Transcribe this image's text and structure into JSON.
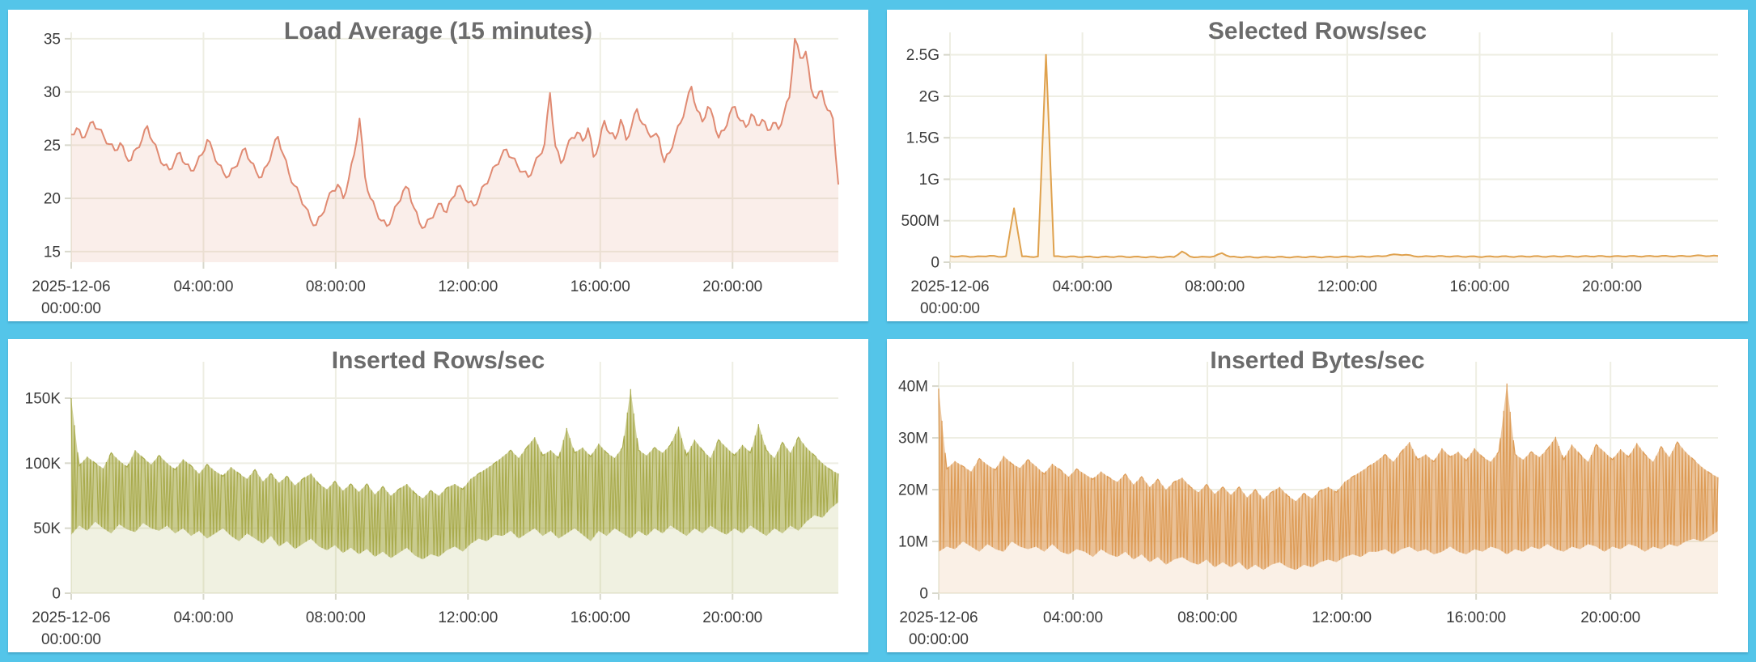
{
  "page": {
    "background_color": "#54c5e9",
    "panel_color": "#ffffff",
    "grid_color": "#eeeee3",
    "tick_stub_color": "#d8d8cc",
    "tick_text_color": "#3b3b3b",
    "title_color": "#6b6b6b"
  },
  "x_axis": {
    "start_label_line1": "2025-12-06",
    "start_label_line2": "00:00:00",
    "ticks": [
      {
        "hour": 0,
        "line1": "2025-12-06",
        "line2": "00:00:00"
      },
      {
        "hour": 4,
        "line1": "04:00:00"
      },
      {
        "hour": 8,
        "line1": "08:00:00"
      },
      {
        "hour": 12,
        "line1": "12:00:00"
      },
      {
        "hour": 16,
        "line1": "16:00:00"
      },
      {
        "hour": 20,
        "line1": "20:00:00"
      }
    ],
    "end_hour": 23.2
  },
  "chart_data": [
    {
      "type": "line",
      "title": "Load Average (15 minutes)",
      "color": "#e08a72",
      "fill_color": "rgba(224,138,114,0.15)",
      "unit": "",
      "ylim": [
        14.0,
        35.6
      ],
      "yticks": [
        {
          "v": 15,
          "label": "15"
        },
        {
          "v": 20,
          "label": "20"
        },
        {
          "v": 25,
          "label": "25"
        },
        {
          "v": 30,
          "label": "30"
        },
        {
          "v": 35,
          "label": "35"
        }
      ],
      "x_start_hour": 0,
      "x_end_hour": 23.2,
      "sample_minutes": 10,
      "noise_amplitude": 0.6,
      "values": [
        26.0,
        26.6,
        25.7,
        26.4,
        27.2,
        26.5,
        25.8,
        25.1,
        24.5,
        25.2,
        24.0,
        23.6,
        24.7,
        25.5,
        26.8,
        25.3,
        24.2,
        23.1,
        22.7,
        23.5,
        24.3,
        23.2,
        22.6,
        23.2,
        24.1,
        25.5,
        24.5,
        23.2,
        22.4,
        22.1,
        22.9,
        23.8,
        24.7,
        23.4,
        22.5,
        22.0,
        23.1,
        24.6,
        25.8,
        24.1,
        22.4,
        21.2,
        20.3,
        19.2,
        18.0,
        17.5,
        18.4,
        19.7,
        20.7,
        21.3,
        20.0,
        21.8,
        24.1,
        27.5,
        22.0,
        20.0,
        18.9,
        17.9,
        17.4,
        18.3,
        19.5,
        20.7,
        20.9,
        19.1,
        17.7,
        17.3,
        18.1,
        18.9,
        19.5,
        18.7,
        20.0,
        21.1,
        20.7,
        19.6,
        19.3,
        20.2,
        21.3,
        22.1,
        23.1,
        23.9,
        24.6,
        23.8,
        23.1,
        22.5,
        22.0,
        23.0,
        24.0,
        25.1,
        29.9,
        24.9,
        23.3,
        24.6,
        25.7,
        26.2,
        25.4,
        26.6,
        23.9,
        25.1,
        27.3,
        26.1,
        25.6,
        27.4,
        25.5,
        26.8,
        28.4,
        27.0,
        26.2,
        25.9,
        25.7,
        23.4,
        24.3,
        25.9,
        27.1,
        28.8,
        30.5,
        28.3,
        27.2,
        28.6,
        27.6,
        25.7,
        26.4,
        27.9,
        28.6,
        27.3,
        26.7,
        27.9,
        26.9,
        27.4,
        26.4,
        27.1,
        26.5,
        28.0,
        29.5,
        35.0,
        33.2,
        33.8,
        30.3,
        29.4,
        30.1,
        28.3,
        27.5,
        21.3
      ]
    },
    {
      "type": "line",
      "title": "Selected Rows/sec",
      "color": "#dfa14d",
      "fill_color": "rgba(223,161,77,0.13)",
      "unit": "M",
      "ylim": [
        0,
        2770
      ],
      "yticks": [
        {
          "v": 0,
          "label": "0"
        },
        {
          "v": 500,
          "label": "500M"
        },
        {
          "v": 1000,
          "label": "1G"
        },
        {
          "v": 1500,
          "label": "1.5G"
        },
        {
          "v": 2000,
          "label": "2G"
        },
        {
          "v": 2500,
          "label": "2.5G"
        }
      ],
      "x_start_hour": 0,
      "x_end_hour": 23.2,
      "sample_minutes": 15,
      "noise_amplitude": 10,
      "values": [
        75,
        68,
        72,
        65,
        70,
        78,
        66,
        72,
        650,
        70,
        64,
        69,
        2500,
        72,
        65,
        70,
        62,
        68,
        60,
        66,
        63,
        70,
        62,
        67,
        60,
        65,
        58,
        64,
        62,
        130,
        68,
        60,
        64,
        70,
        110,
        66,
        60,
        64,
        58,
        62,
        60,
        66,
        59,
        63,
        61,
        67,
        60,
        64,
        62,
        68,
        63,
        69,
        66,
        72,
        70,
        88,
        92,
        90,
        72,
        68,
        70,
        75,
        68,
        72,
        66,
        71,
        64,
        69,
        66,
        72,
        65,
        70,
        67,
        73,
        66,
        71,
        68,
        74,
        67,
        72,
        69,
        75,
        68,
        73,
        70,
        76,
        69,
        74,
        71,
        77,
        70,
        75,
        72,
        78,
        80,
        74,
        76
      ]
    },
    {
      "type": "noise_band",
      "title": "Inserted Rows/sec",
      "color": "#a9ab4d",
      "fill_color": "rgba(169,171,77,0.17)",
      "unit": "K",
      "ylim": [
        0,
        178
      ],
      "yticks": [
        {
          "v": 0,
          "label": "0"
        },
        {
          "v": 50,
          "label": "50K"
        },
        {
          "v": 100,
          "label": "100K"
        },
        {
          "v": 150,
          "label": "150K"
        }
      ],
      "x_start_hour": 0,
      "x_end_hour": 23.2,
      "sample_minutes": 15,
      "band_low": [
        45,
        52,
        48,
        55,
        50,
        46,
        53,
        49,
        47,
        54,
        50,
        48,
        52,
        46,
        50,
        44,
        48,
        42,
        46,
        50,
        44,
        40,
        46,
        42,
        38,
        44,
        36,
        40,
        34,
        38,
        42,
        36,
        33,
        37,
        31,
        35,
        30,
        34,
        28,
        32,
        27,
        31,
        35,
        29,
        26,
        30,
        28,
        33,
        36,
        32,
        38,
        42,
        40,
        45,
        44,
        48,
        42,
        46,
        50,
        44,
        48,
        42,
        46,
        50,
        45,
        40,
        48,
        44,
        50,
        46,
        42,
        48,
        44,
        50,
        46,
        52,
        48,
        44,
        50,
        46,
        52,
        48,
        45,
        50,
        46,
        52,
        48,
        44,
        50,
        46,
        52,
        48,
        55,
        60,
        58,
        65,
        70
      ],
      "band_high": [
        150,
        98,
        105,
        100,
        96,
        108,
        102,
        97,
        110,
        104,
        99,
        106,
        100,
        95,
        103,
        98,
        92,
        99,
        94,
        90,
        97,
        92,
        88,
        95,
        86,
        92,
        85,
        90,
        83,
        88,
        92,
        84,
        80,
        86,
        79,
        84,
        78,
        84,
        76,
        82,
        75,
        80,
        84,
        77,
        73,
        79,
        75,
        81,
        84,
        80,
        88,
        92,
        96,
        100,
        105,
        110,
        104,
        112,
        120,
        106,
        110,
        104,
        127,
        108,
        112,
        105,
        115,
        108,
        104,
        112,
        157,
        110,
        106,
        112,
        108,
        114,
        128,
        106,
        118,
        110,
        104,
        118,
        112,
        106,
        114,
        108,
        130,
        110,
        104,
        116,
        108,
        120,
        112,
        106,
        100,
        95,
        92
      ]
    },
    {
      "type": "noise_band",
      "title": "Inserted Bytes/sec",
      "color": "#dd9b55",
      "fill_color": "rgba(221,155,85,0.15)",
      "unit": "M",
      "ylim": [
        0,
        44.7
      ],
      "yticks": [
        {
          "v": 0,
          "label": "0"
        },
        {
          "v": 10,
          "label": "10M"
        },
        {
          "v": 20,
          "label": "20M"
        },
        {
          "v": 30,
          "label": "30M"
        },
        {
          "v": 40,
          "label": "40M"
        }
      ],
      "x_start_hour": 0,
      "x_end_hour": 23.2,
      "sample_minutes": 15,
      "band_low": [
        8,
        9,
        8.5,
        10,
        9,
        8,
        9.5,
        8.5,
        8,
        10,
        9,
        8.5,
        9,
        8,
        9.5,
        8,
        7.5,
        8.5,
        8,
        7,
        8.5,
        7.5,
        7,
        8,
        6.5,
        7.5,
        6,
        7,
        5.5,
        6.5,
        7,
        6,
        5.5,
        6.5,
        5,
        6,
        5,
        6,
        4.5,
        5.5,
        4.5,
        5.5,
        6,
        5,
        4.5,
        5.5,
        5,
        6,
        6.5,
        6,
        7,
        7.5,
        7,
        8,
        8,
        8.5,
        7.5,
        8.5,
        9,
        8,
        8.5,
        7.5,
        8,
        9,
        8,
        7.5,
        8.5,
        8,
        9,
        8.5,
        7.5,
        8.5,
        8,
        9,
        8.5,
        9.5,
        8.5,
        8,
        9,
        8.5,
        9.5,
        9,
        8,
        9,
        8.5,
        9.5,
        9,
        8,
        9,
        8.5,
        9.5,
        9,
        10,
        10.5,
        10,
        11,
        12
      ],
      "band_high": [
        39.5,
        24,
        25.5,
        24.5,
        23.5,
        26,
        24.8,
        23.8,
        26.5,
        25,
        24.2,
        25.8,
        24.5,
        23,
        25,
        23.8,
        22.5,
        24,
        23,
        22,
        23.5,
        22.3,
        21.5,
        23,
        21,
        22.5,
        20.5,
        22,
        20,
        21.5,
        22.3,
        20.5,
        19.5,
        21,
        19.2,
        20.5,
        19,
        20.5,
        18.5,
        20,
        18.2,
        19.5,
        20.5,
        18.8,
        17.8,
        19.3,
        18.3,
        19.8,
        20.5,
        19.5,
        21.5,
        22.5,
        23.5,
        24.5,
        25.6,
        26.8,
        25.4,
        27.3,
        29.2,
        25.8,
        26.8,
        25.4,
        28.0,
        26.3,
        27.3,
        25.6,
        28.0,
        26.3,
        25.4,
        27.3,
        40.5,
        26.8,
        25.8,
        27.3,
        26.3,
        27.8,
        30.2,
        25.8,
        28.7,
        26.8,
        25.4,
        28.7,
        27.3,
        25.8,
        27.8,
        26.3,
        29.0,
        26.8,
        25.4,
        28.3,
        26.3,
        29.2,
        27.3,
        25.8,
        24.4,
        23.2,
        22.4
      ]
    }
  ]
}
